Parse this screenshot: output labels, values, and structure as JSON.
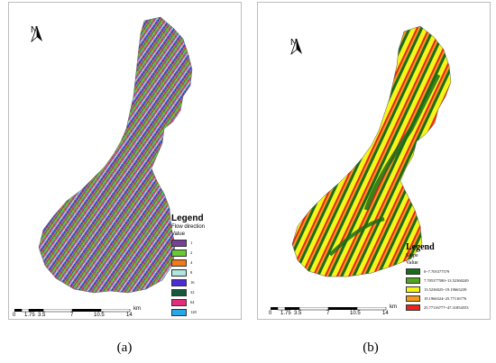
{
  "panel_a": {
    "north": "N",
    "caption": "(a)",
    "legend": {
      "title": "Legend",
      "subtitle": "Flow direction",
      "value_label": "Value",
      "items": [
        {
          "label": "1",
          "color": "#7b3f9a"
        },
        {
          "label": "2",
          "color": "#69c932"
        },
        {
          "label": "4",
          "color": "#f07a17"
        },
        {
          "label": "8",
          "color": "#aee6df"
        },
        {
          "label": "16",
          "color": "#4a2bd6"
        },
        {
          "label": "32",
          "color": "#15593a"
        },
        {
          "label": "64",
          "color": "#e32d7c"
        },
        {
          "label": "128",
          "color": "#28a7e8"
        }
      ]
    },
    "scale": {
      "ticks": [
        "0",
        "1.75",
        "3.5",
        "7",
        "10.5",
        "14"
      ],
      "unit": "km"
    }
  },
  "panel_b": {
    "north": "N",
    "caption": "(b)",
    "legend": {
      "title": "Legend",
      "subtitle": "Slope",
      "value_label": "Value",
      "items": [
        {
          "label": "0~7.705377579",
          "color": "#1a6b1a"
        },
        {
          "label": "7.705377580~13.52360249",
          "color": "#4fa51b"
        },
        {
          "label": "13.5236025~19.19663239",
          "color": "#f5f51a"
        },
        {
          "label": "19.1966324~25.77116776",
          "color": "#f59a1a"
        },
        {
          "label": "25.77116777~47.31854553",
          "color": "#e8251a"
        }
      ]
    },
    "scale": {
      "ticks": [
        "0",
        "1.75",
        "3.5",
        "7",
        "10.5",
        "14"
      ],
      "unit": "km"
    }
  }
}
